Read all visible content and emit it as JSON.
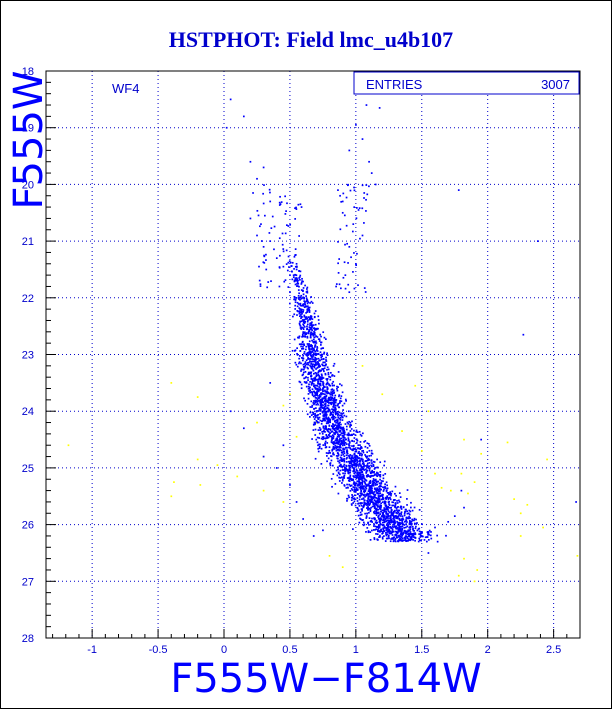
{
  "chart_data": {
    "type": "scatter",
    "title": "HSTPHOT: Field lmc_u4b107",
    "xlabel": "F555W−F814W",
    "ylabel": "F555W",
    "panel_label": "WF4",
    "stats": {
      "label": "ENTRIES",
      "value": "3007"
    },
    "xlim": [
      -1.35,
      2.7
    ],
    "ylim": [
      28,
      18
    ],
    "y_inverted": true,
    "grid": true,
    "grid_style": "dotted",
    "x_ticks": [
      "-1",
      "-0.5",
      "0",
      "0.5",
      "1",
      "1.5",
      "2",
      "2.5"
    ],
    "y_ticks": [
      "18",
      "19",
      "20",
      "21",
      "22",
      "23",
      "24",
      "25",
      "26",
      "27",
      "28"
    ],
    "colors": {
      "background": "#ffffff",
      "frame": "#000000",
      "text": "#0000cc",
      "main_points": "#0000ff",
      "rejected_points": "#ffff00",
      "grid": "#0000cc"
    },
    "series": [
      {
        "color": "#0000ff",
        "points": [
          [
            0.05,
            18.5
          ],
          [
            0.15,
            18.8
          ],
          [
            0.02,
            19.0
          ],
          [
            1.08,
            18.6
          ],
          [
            1.18,
            18.65
          ],
          [
            1.0,
            18.95
          ],
          [
            0.95,
            19.4
          ],
          [
            1.05,
            19.2
          ],
          [
            1.1,
            19.6
          ],
          [
            0.2,
            19.6
          ],
          [
            0.3,
            19.7
          ],
          [
            0.25,
            19.9
          ],
          [
            1.12,
            19.8
          ],
          [
            1.15,
            20.0
          ],
          [
            0.22,
            20.15
          ],
          [
            0.35,
            20.3
          ],
          [
            0.9,
            20.3
          ],
          [
            0.88,
            20.2
          ],
          [
            1.02,
            20.45
          ],
          [
            0.2,
            20.6
          ],
          [
            0.28,
            20.7
          ],
          [
            0.9,
            20.5
          ],
          [
            0.98,
            20.7
          ],
          [
            1.05,
            20.9
          ],
          [
            0.25,
            20.9
          ],
          [
            0.3,
            21.1
          ],
          [
            0.35,
            21.0
          ],
          [
            0.4,
            21.3
          ],
          [
            0.95,
            21.1
          ],
          [
            1.0,
            21.4
          ],
          [
            0.32,
            21.5
          ],
          [
            0.45,
            21.45
          ],
          [
            0.5,
            21.6
          ],
          [
            0.55,
            21.4
          ],
          [
            0.92,
            21.6
          ],
          [
            0.85,
            21.8
          ],
          [
            0.9,
            22.0
          ],
          [
            0.95,
            21.9
          ],
          [
            0.42,
            21.8
          ],
          [
            0.5,
            21.9
          ],
          [
            0.55,
            22.0
          ],
          [
            1.78,
            20.1
          ],
          [
            2.38,
            21.0
          ],
          [
            2.27,
            22.65
          ],
          [
            0.68,
            26.2
          ],
          [
            0.75,
            26.1
          ],
          [
            1.3,
            26.25
          ],
          [
            1.38,
            26.2
          ],
          [
            1.5,
            26.15
          ],
          [
            1.6,
            26.05
          ],
          [
            2.67,
            25.6
          ],
          [
            1.55,
            26.5
          ],
          [
            1.62,
            26.3
          ],
          [
            1.7,
            25.95
          ],
          [
            1.75,
            25.85
          ],
          [
            1.82,
            25.7
          ],
          [
            0.6,
            25.9
          ],
          [
            0.55,
            25.6
          ],
          [
            0.5,
            25.3
          ],
          [
            0.4,
            25.0
          ],
          [
            0.45,
            24.6
          ],
          [
            0.35,
            23.5
          ],
          [
            1.95,
            24.5
          ],
          [
            1.8,
            25.4
          ],
          [
            0.15,
            24.3
          ],
          [
            0.05,
            24.0
          ],
          [
            0.3,
            24.8
          ]
        ]
      },
      {
        "color": "#ffff00",
        "points": [
          [
            -1.18,
            24.6
          ],
          [
            -0.4,
            23.5
          ],
          [
            -0.2,
            23.75
          ],
          [
            -0.38,
            25.25
          ],
          [
            -0.4,
            25.5
          ],
          [
            -0.2,
            24.85
          ],
          [
            -0.05,
            24.95
          ],
          [
            0.3,
            24.8
          ],
          [
            0.25,
            24.2
          ],
          [
            0.45,
            23.9
          ],
          [
            0.5,
            23.7
          ],
          [
            0.1,
            25.15
          ],
          [
            0.3,
            25.4
          ],
          [
            0.45,
            25.6
          ],
          [
            -0.18,
            25.3
          ],
          [
            0.8,
            26.55
          ],
          [
            0.9,
            26.75
          ],
          [
            1.95,
            24.75
          ],
          [
            1.82,
            24.5
          ],
          [
            1.6,
            25.1
          ],
          [
            1.65,
            25.35
          ],
          [
            1.72,
            25.4
          ],
          [
            1.85,
            25.45
          ],
          [
            1.9,
            25.25
          ],
          [
            1.8,
            25.1
          ],
          [
            2.15,
            24.55
          ],
          [
            2.2,
            25.55
          ],
          [
            2.25,
            25.8
          ],
          [
            2.3,
            25.65
          ],
          [
            2.42,
            26.05
          ],
          [
            2.25,
            26.2
          ],
          [
            1.82,
            26.6
          ],
          [
            1.92,
            26.8
          ],
          [
            1.78,
            26.9
          ],
          [
            1.9,
            27.0
          ],
          [
            2.68,
            26.55
          ],
          [
            2.45,
            24.85
          ],
          [
            1.55,
            24.0
          ],
          [
            1.45,
            23.55
          ],
          [
            1.2,
            23.7
          ],
          [
            1.05,
            23.2
          ],
          [
            0.95,
            24.25
          ],
          [
            1.35,
            24.35
          ],
          [
            1.5,
            24.7
          ],
          [
            0.55,
            24.45
          ],
          [
            0.7,
            24.2
          ]
        ]
      }
    ]
  }
}
